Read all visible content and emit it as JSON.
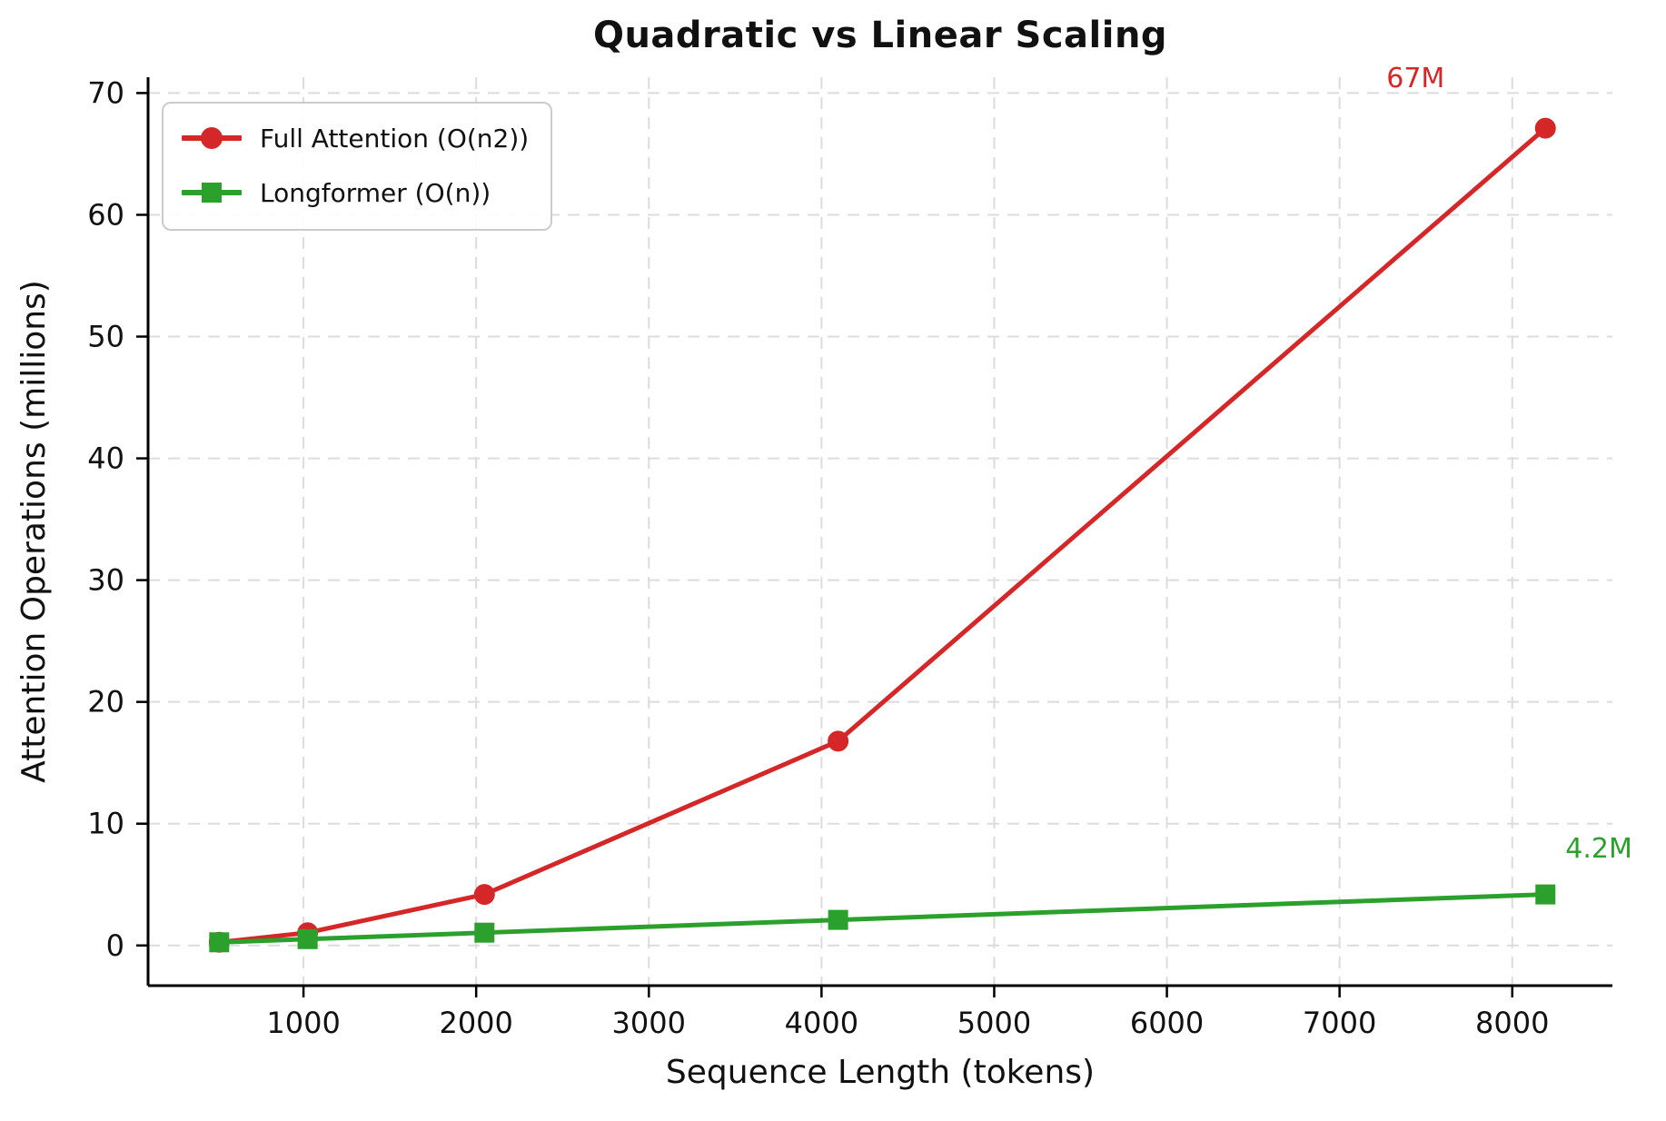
{
  "chart_data": {
    "type": "line",
    "title": "Quadratic vs Linear Scaling",
    "xlabel": "Sequence Length (tokens)",
    "ylabel": "Attention Operations (millions)",
    "x": [
      512,
      1024,
      2048,
      4096,
      8192
    ],
    "series": [
      {
        "name": "Full Attention (O(n2))",
        "color": "#d62728",
        "marker": "circle",
        "values": [
          0.26,
          1.05,
          4.19,
          16.78,
          67.11
        ]
      },
      {
        "name": "Longformer (O(n))",
        "color": "#2ca02c",
        "marker": "square",
        "values": [
          0.26,
          0.52,
          1.05,
          2.1,
          4.19
        ]
      }
    ],
    "xticks": [
      1000,
      2000,
      3000,
      4000,
      5000,
      6000,
      7000,
      8000
    ],
    "yticks": [
      0,
      10,
      20,
      30,
      40,
      50,
      60,
      70
    ],
    "xlim": [
      100,
      8580
    ],
    "ylim": [
      -3.3,
      71.3
    ],
    "grid": true,
    "legend_position": "upper left",
    "annotations": [
      {
        "text": "67M",
        "x": 8192,
        "y": 67.11,
        "color": "#d62728"
      },
      {
        "text": "4.2M",
        "x": 8192,
        "y": 4.19,
        "color": "#2ca02c"
      }
    ]
  },
  "colors": {
    "grid": "#dcdcdc",
    "spine": "#000000",
    "background": "#ffffff",
    "legend_border": "#cbcbcb",
    "red_series": "#d62728",
    "green_series": "#2ca02c"
  }
}
